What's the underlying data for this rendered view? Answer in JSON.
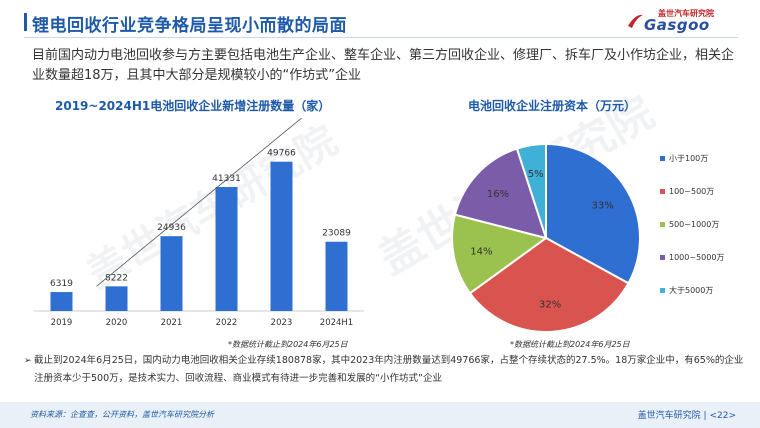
{
  "header": {
    "title": "锂电回收行业竞争格局呈现小而散的局面",
    "logo_cn": "盖世汽车研究院",
    "logo_en": "Gasgoo"
  },
  "intro": "目前国内动力电池回收参与方主要包括电池生产企业、整车企业、第三方回收企业、修理厂、拆车厂及小作坊企业，相关企业数量超18万，且其中大部分是规模较小的“作坊式”企业",
  "watermark": "盖世汽车研究院",
  "chart_data": [
    {
      "type": "bar",
      "title": "2019~2024H1电池回收企业新增注册数量（家）",
      "categories": [
        "2019",
        "2020",
        "2021",
        "2022",
        "2023",
        "2024H1"
      ],
      "values": [
        6319,
        8222,
        24936,
        41331,
        49766,
        23089
      ],
      "ylim": [
        0,
        55000
      ],
      "grid": false,
      "color": "#2f6fd1",
      "trend_line": true,
      "note": "*数据统计截止到2024年6月25日"
    },
    {
      "type": "pie",
      "title": "电池回收企业注册资本（万元）",
      "slices": [
        {
          "label": "小于100万",
          "value": 33,
          "display": "33%",
          "color": "#2f6fd1"
        },
        {
          "label": "100~500万",
          "value": 32,
          "display": "32%",
          "color": "#d9534f"
        },
        {
          "label": "500~1000万",
          "value": 14,
          "display": "14%",
          "color": "#9bc24f"
        },
        {
          "label": "1000~5000万",
          "value": 16,
          "display": "16%",
          "color": "#7a5ca8"
        },
        {
          "label": "大于5000万",
          "value": 5,
          "display": "5%",
          "color": "#3fb1d6"
        }
      ],
      "legend_position": "right",
      "note": "*数据统计截止到2024年6月25日"
    }
  ],
  "bullet": {
    "arrow": "➢",
    "text": "截止到2024年6月25日，国内动力电池回收相关企业存续180878家，其中2023年内注册数量达到49766家，占整个存续状态的27.5%。18万家企业中，有65%的企业注册资本少于500万，是技术实力、回收流程、商业模式有待进一步完善和发展的“小作坊式”企业"
  },
  "footer": {
    "source": "资料来源：企查查，公开资料，盖世汽车研究院分析",
    "org": "盖世汽车研究院",
    "page": "<22>"
  }
}
